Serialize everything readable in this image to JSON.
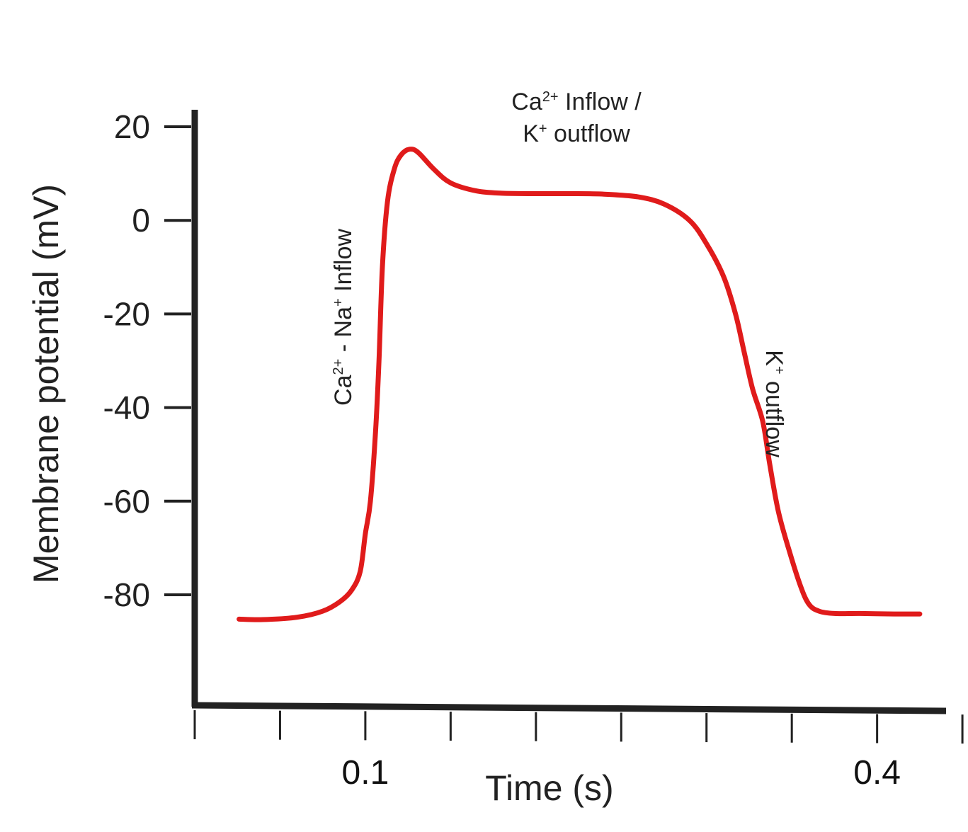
{
  "chart_data": {
    "type": "line",
    "ylabel": "Membrane potential (mV)",
    "xlabel": "Time (s)",
    "y_ticks": [
      "20",
      "0",
      "-20",
      "-40",
      "-60",
      "-80"
    ],
    "y_tick_values": [
      20,
      0,
      -20,
      -40,
      -60,
      -80
    ],
    "x_tick_labels": [
      {
        "value": 0.1,
        "label": "0.1"
      },
      {
        "value": 0.4,
        "label": "0.4"
      }
    ],
    "x_minor_ticks": [
      0.0,
      0.05,
      0.1,
      0.15,
      0.2,
      0.25,
      0.3,
      0.35,
      0.4,
      0.45
    ],
    "xlim": [
      0.0,
      0.44
    ],
    "ylim": [
      -106,
      24
    ],
    "grid": false,
    "line_color": "#e01b1b",
    "axis_color": "#222222",
    "series": [
      {
        "points": [
          [
            0.026,
            -85.2
          ],
          [
            0.04,
            -85.3
          ],
          [
            0.06,
            -84.8
          ],
          [
            0.075,
            -83.5
          ],
          [
            0.085,
            -81.5
          ],
          [
            0.092,
            -79.0
          ],
          [
            0.097,
            -75.0
          ],
          [
            0.1,
            -67.0
          ],
          [
            0.103,
            -60.0
          ],
          [
            0.106,
            -45.0
          ],
          [
            0.108,
            -30.0
          ],
          [
            0.11,
            -10.0
          ],
          [
            0.113,
            4.0
          ],
          [
            0.117,
            11.0
          ],
          [
            0.121,
            14.0
          ],
          [
            0.126,
            15.2
          ],
          [
            0.131,
            14.5
          ],
          [
            0.14,
            11.0
          ],
          [
            0.15,
            8.0
          ],
          [
            0.165,
            6.3
          ],
          [
            0.18,
            5.8
          ],
          [
            0.2,
            5.7
          ],
          [
            0.22,
            5.7
          ],
          [
            0.24,
            5.6
          ],
          [
            0.26,
            5.0
          ],
          [
            0.275,
            3.5
          ],
          [
            0.29,
            0.0
          ],
          [
            0.3,
            -5.0
          ],
          [
            0.31,
            -12.0
          ],
          [
            0.317,
            -20.0
          ],
          [
            0.322,
            -28.0
          ],
          [
            0.327,
            -36.0
          ],
          [
            0.333,
            -43.0
          ],
          [
            0.337,
            -52.0
          ],
          [
            0.342,
            -62.0
          ],
          [
            0.348,
            -70.0
          ],
          [
            0.355,
            -78.0
          ],
          [
            0.36,
            -82.0
          ],
          [
            0.366,
            -83.5
          ],
          [
            0.375,
            -84.0
          ],
          [
            0.39,
            -84.0
          ],
          [
            0.41,
            -84.1
          ],
          [
            0.42,
            -84.1
          ],
          [
            0.425,
            -84.1
          ]
        ]
      }
    ],
    "annotations": [
      {
        "id": "depolarization",
        "text": "Ca",
        "sup1": "2+",
        "mid": " - Na",
        "sup2": "+",
        "end": " Inflow",
        "orientation": "vertical-up"
      },
      {
        "id": "plateau_line1",
        "text": "Ca",
        "sup1": "2+",
        "end": " Inflow /"
      },
      {
        "id": "plateau_line2",
        "text": "K",
        "sup1": "+",
        "end": " outflow"
      },
      {
        "id": "repolarization",
        "text": "K",
        "sup1": "+",
        "end": " outflow",
        "orientation": "vertical-down"
      }
    ]
  }
}
